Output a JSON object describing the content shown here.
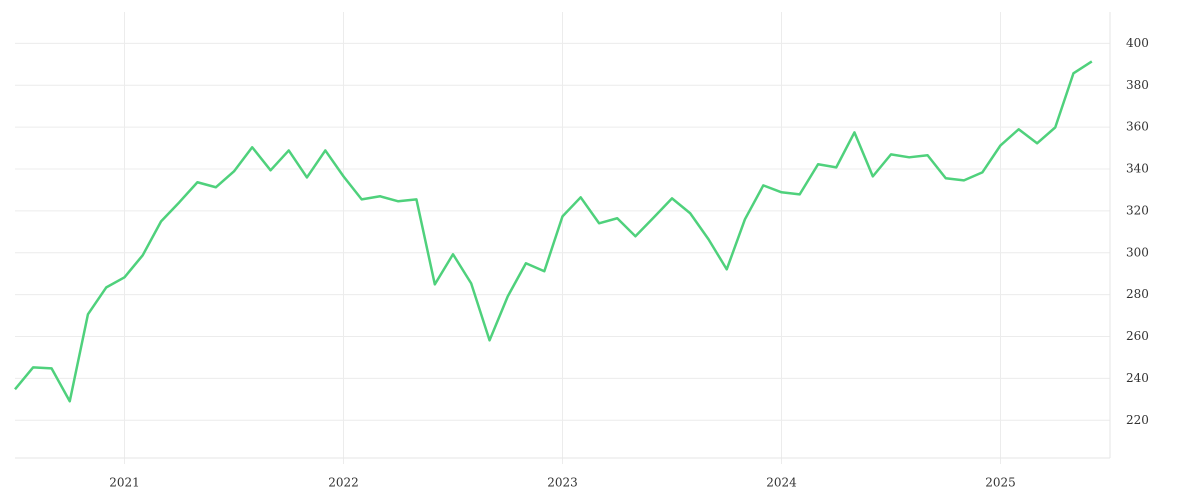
{
  "chart_data": {
    "type": "line",
    "x": [
      2020.5,
      2020.583,
      2020.667,
      2020.75,
      2020.833,
      2020.917,
      2021,
      2021.083,
      2021.167,
      2021.25,
      2021.333,
      2021.417,
      2021.5,
      2021.583,
      2021.667,
      2021.75,
      2021.833,
      2021.917,
      2022,
      2022.083,
      2022.167,
      2022.25,
      2022.333,
      2022.417,
      2022.5,
      2022.583,
      2022.667,
      2022.75,
      2022.833,
      2022.917,
      2023,
      2023.083,
      2023.167,
      2023.25,
      2023.333,
      2023.417,
      2023.5,
      2023.583,
      2023.667,
      2023.75,
      2023.833,
      2023.917,
      2024,
      2024.083,
      2024.167,
      2024.25,
      2024.333,
      2024.417,
      2024.5,
      2024.583,
      2024.667,
      2024.75,
      2024.833,
      2024.917,
      2025,
      2025.083,
      2025.167,
      2025.25,
      2025.333,
      2025.417
    ],
    "series": [
      {
        "color": "#4fd17c",
        "values": [
          234.8,
          245.3,
          244.8,
          229.1,
          270.6,
          283.5,
          288.3,
          298.8,
          315.0,
          324.1,
          333.7,
          331.3,
          338.9,
          350.4,
          339.4,
          348.9,
          336.0,
          348.9,
          336.5,
          325.5,
          327.0,
          324.6,
          325.5,
          284.9,
          299.3,
          285.4,
          258.2,
          279.2,
          295.0,
          291.2,
          317.4,
          326.5,
          314.1,
          316.5,
          307.9,
          316.9,
          326.0,
          318.9,
          306.4,
          292.1,
          316.0,
          332.2,
          328.9,
          327.9,
          342.3,
          340.8,
          357.5,
          336.5,
          347.0,
          345.6,
          346.6,
          335.6,
          334.6,
          338.4,
          351.3,
          359.0,
          352.3,
          359.9,
          385.7,
          391.4
        ]
      }
    ],
    "xlim": [
      2020.5,
      2025.5
    ],
    "xticks": [
      2021,
      2022,
      2023,
      2024,
      2025
    ],
    "ylim": [
      202,
      415
    ],
    "yticks": [
      220,
      240,
      260,
      280,
      300,
      320,
      340,
      360,
      380,
      400
    ],
    "grid": true,
    "y_axis_side": "right"
  }
}
